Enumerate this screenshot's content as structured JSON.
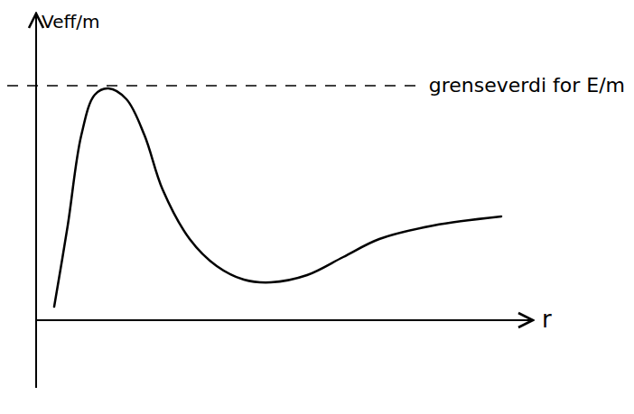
{
  "chart_data": {
    "type": "line",
    "x_label": "r",
    "y_label": "Veff/m",
    "x": [
      0.4,
      0.7,
      1.0,
      1.3,
      1.6,
      2.0,
      2.4,
      2.8,
      3.4,
      4.0,
      4.6,
      5.2,
      6.0,
      6.8,
      7.6,
      8.8,
      10.3
    ],
    "series": [
      {
        "name": "Veff/m",
        "color": "#000000",
        "values": [
          0.3,
          2.1,
          4.1,
          5.0,
          5.14,
          4.9,
          4.1,
          2.9,
          1.8,
          1.2,
          0.9,
          0.84,
          1.0,
          1.4,
          1.8,
          2.1,
          2.3
        ]
      }
    ],
    "xlim": [
      0,
      11
    ],
    "ylim": [
      -1.5,
      6.8
    ],
    "tick_labels": false,
    "grid": false,
    "annotations": [
      {
        "text": "grenseverdi for E/m",
        "y": 5.2
      }
    ]
  }
}
